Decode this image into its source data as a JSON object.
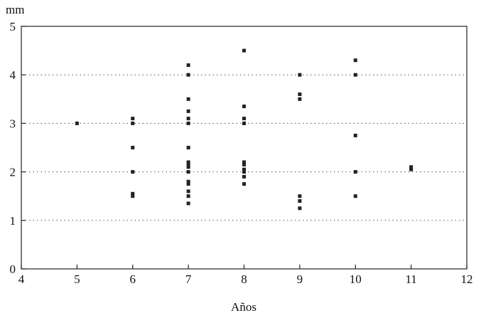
{
  "chart_data": {
    "type": "scatter",
    "title": "",
    "ylabel": "mm",
    "xlabel": "Años",
    "xlim": [
      4,
      12
    ],
    "ylim": [
      0,
      5
    ],
    "xticks": [
      4,
      5,
      6,
      7,
      8,
      9,
      10,
      11,
      12
    ],
    "yticks": [
      0,
      1,
      2,
      3,
      4,
      5
    ],
    "grid": "horizontal dotted at y = 1, 2, 3, 4",
    "legend": "none",
    "series": [
      {
        "points": [
          [
            5,
            3.0
          ],
          [
            6,
            3.1
          ],
          [
            6,
            3.0
          ],
          [
            6,
            2.5
          ],
          [
            6,
            2.0
          ],
          [
            6,
            1.55
          ],
          [
            6,
            1.5
          ],
          [
            7,
            4.2
          ],
          [
            7,
            4.0
          ],
          [
            7,
            3.5
          ],
          [
            7,
            3.25
          ],
          [
            7,
            3.1
          ],
          [
            7,
            3.0
          ],
          [
            7,
            2.5
          ],
          [
            7,
            2.2
          ],
          [
            7,
            2.15
          ],
          [
            7,
            2.1
          ],
          [
            7,
            2.0
          ],
          [
            7,
            1.8
          ],
          [
            7,
            1.75
          ],
          [
            7,
            1.6
          ],
          [
            7,
            1.5
          ],
          [
            7,
            1.35
          ],
          [
            8,
            4.5
          ],
          [
            8,
            3.35
          ],
          [
            8,
            3.1
          ],
          [
            8,
            3.0
          ],
          [
            8,
            2.2
          ],
          [
            8,
            2.15
          ],
          [
            8,
            2.05
          ],
          [
            8,
            2.0
          ],
          [
            8,
            1.9
          ],
          [
            8,
            1.75
          ],
          [
            9,
            4.0
          ],
          [
            9,
            3.6
          ],
          [
            9,
            3.5
          ],
          [
            9,
            1.5
          ],
          [
            9,
            1.4
          ],
          [
            9,
            1.25
          ],
          [
            10,
            4.3
          ],
          [
            10,
            4.0
          ],
          [
            10,
            2.75
          ],
          [
            10,
            2.0
          ],
          [
            10,
            1.5
          ],
          [
            11,
            2.1
          ],
          [
            11,
            2.05
          ]
        ]
      }
    ]
  }
}
